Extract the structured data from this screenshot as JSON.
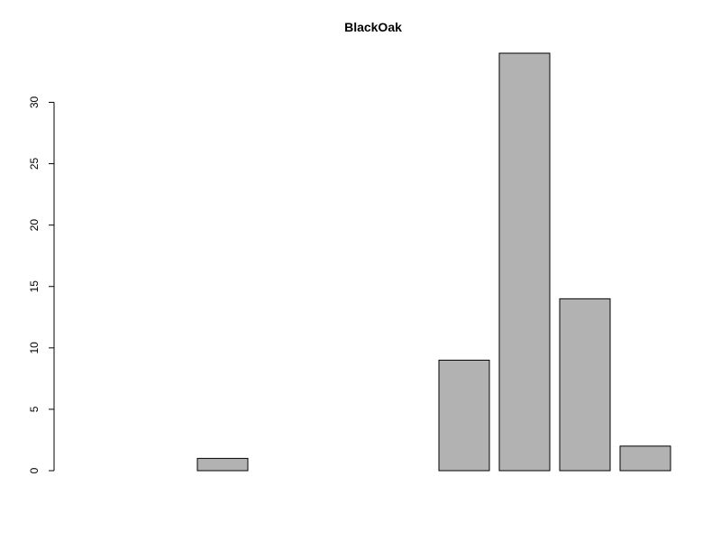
{
  "chart_data": {
    "type": "bar",
    "title": "BlackOak",
    "xlabel": "",
    "ylabel": "",
    "categories": [
      "",
      "",
      "",
      "",
      "",
      "",
      "",
      "",
      "",
      ""
    ],
    "values": [
      0,
      0,
      1,
      0,
      0,
      0,
      9,
      34,
      14,
      2
    ],
    "ylim": [
      0,
      34
    ],
    "yticks": [
      0,
      5,
      10,
      15,
      20,
      25,
      30
    ],
    "bar_color": "#b2b2b2",
    "grid": false
  }
}
